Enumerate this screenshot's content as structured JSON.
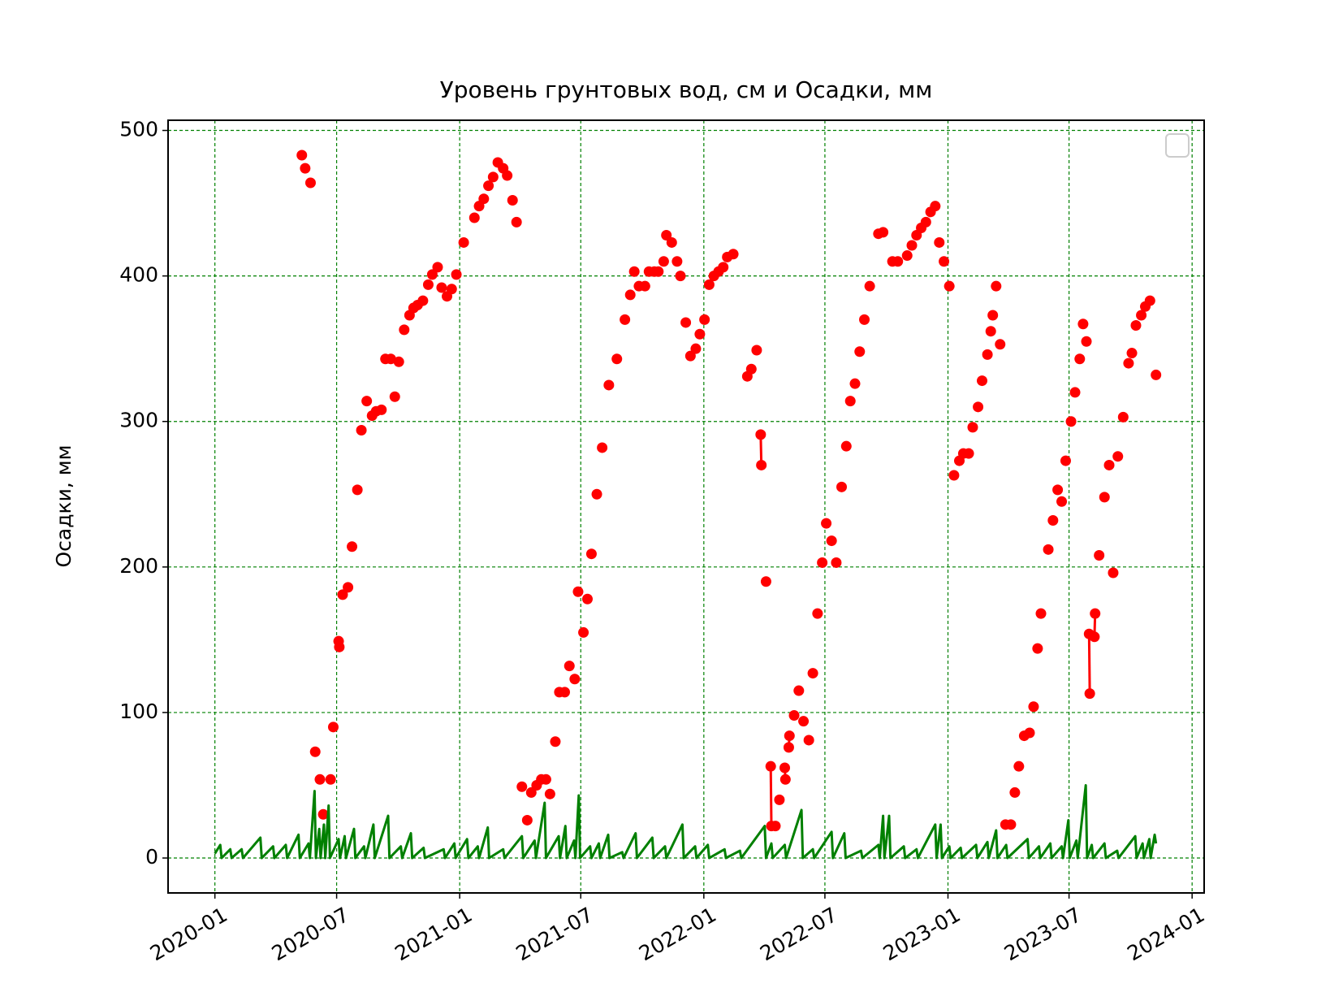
{
  "chart_data": {
    "type": "line",
    "title": "Уровень грунтовых вод, см и Осадки, мм",
    "y_label": "Осадки, мм",
    "xlim": [
      "2019-10-23",
      "2024-01-19"
    ],
    "xticks": [
      "2020-01",
      "2020-07",
      "2021-01",
      "2021-07",
      "2022-01",
      "2022-07",
      "2023-01",
      "2023-07",
      "2024-01"
    ],
    "ylim": [
      -24,
      507
    ],
    "yticks": [
      0,
      100,
      200,
      300,
      400,
      500
    ],
    "grid": true,
    "grid_color": "green",
    "legend": "upper right",
    "series": [
      {
        "color": "red",
        "marker": true,
        "x": [
          "2020-05-10",
          "2020-05-15",
          "2020-05-23",
          "2020-05-30",
          "2020-06-06",
          "2020-06-11",
          "2020-06-22",
          "2020-06-26",
          "2020-07-04",
          "2020-07-05",
          "2020-07-10",
          "2020-07-18",
          "2020-07-24",
          "2020-08-01",
          "2020-08-07",
          "2020-08-15",
          "2020-08-23",
          "2020-08-29",
          "2020-09-06",
          "2020-09-12",
          "2020-09-20",
          "2020-09-26",
          "2020-10-02",
          "2020-10-10",
          "2020-10-18",
          "2020-10-24",
          "2020-10-30",
          "2020-11-07",
          "2020-11-15",
          "2020-11-21",
          "2020-11-29",
          "2020-12-05",
          "2020-12-13",
          "2020-12-20",
          "2020-12-27",
          "2021-01-07",
          "2021-01-23",
          "2021-01-30",
          "2021-02-06",
          "2021-02-13",
          "2021-02-20",
          "2021-02-27",
          "2021-03-07",
          "2021-03-13",
          "2021-03-21",
          "2021-03-27",
          "2021-04-04",
          "2021-04-12",
          "2021-04-18",
          "2021-04-26",
          "2021-05-03",
          "2021-05-10",
          "2021-05-16",
          "2021-05-24",
          "2021-05-30",
          "2021-06-07",
          "2021-06-14",
          "2021-06-22",
          "2021-06-27",
          "2021-07-05",
          "2021-07-11",
          "2021-07-17",
          "2021-07-25",
          "2021-08-02",
          "2021-08-12",
          "2021-08-24",
          "2021-09-05",
          "2021-09-13",
          "2021-09-19",
          "2021-09-26",
          "2021-10-05",
          "2021-10-11",
          "2021-10-19",
          "2021-10-25",
          "2021-11-02",
          "2021-11-06",
          "2021-11-14",
          "2021-11-22",
          "2021-11-27",
          "2021-12-05",
          "2021-12-12",
          "2021-12-20",
          "2021-12-26",
          "2022-01-02",
          "2022-01-09",
          "2022-01-16",
          "2022-01-23",
          "2022-01-30",
          "2022-02-05",
          "2022-02-14",
          "2022-03-07",
          "2022-03-13",
          "2022-03-21",
          "2022-03-27",
          "2022-03-28",
          "2022-04-04",
          "2022-04-11",
          "2022-04-12",
          "2022-04-18",
          "2022-04-24",
          "2022-05-02",
          "2022-05-03",
          "2022-05-08",
          "2022-05-09",
          "2022-05-16",
          "2022-05-23",
          "2022-05-30",
          "2022-06-07",
          "2022-06-13",
          "2022-06-20",
          "2022-06-27",
          "2022-07-03",
          "2022-07-11",
          "2022-07-18",
          "2022-07-26",
          "2022-08-02",
          "2022-08-08",
          "2022-08-15",
          "2022-08-22",
          "2022-08-29",
          "2022-09-06",
          "2022-09-19",
          "2022-09-26",
          "2022-10-10",
          "2022-10-18",
          "2022-11-01",
          "2022-11-08",
          "2022-11-15",
          "2022-11-22",
          "2022-11-29",
          "2022-12-06",
          "2022-12-13",
          "2022-12-19",
          "2022-12-26",
          "2023-01-03",
          "2023-01-10",
          "2023-01-18",
          "2023-01-24",
          "2023-02-01",
          "2023-02-07",
          "2023-02-15",
          "2023-02-21",
          "2023-03-01",
          "2023-03-06",
          "2023-03-09",
          "2023-03-14",
          "2023-03-20",
          "2023-03-28",
          "2023-04-05",
          "2023-04-11",
          "2023-04-17",
          "2023-04-25",
          "2023-05-03",
          "2023-05-09",
          "2023-05-15",
          "2023-05-20",
          "2023-05-31",
          "2023-06-07",
          "2023-06-14",
          "2023-06-20",
          "2023-06-26",
          "2023-07-04",
          "2023-07-10",
          "2023-07-17",
          "2023-07-22",
          "2023-07-27",
          "2023-07-31",
          "2023-08-01",
          "2023-08-08",
          "2023-08-09",
          "2023-08-15",
          "2023-08-23",
          "2023-08-30",
          "2023-09-05",
          "2023-09-12",
          "2023-09-20",
          "2023-09-28",
          "2023-10-03",
          "2023-10-09",
          "2023-10-17",
          "2023-10-23",
          "2023-10-30",
          "2023-11-08"
        ],
        "values": [
          483,
          474,
          464,
          73,
          54,
          30,
          54,
          90,
          149,
          145,
          181,
          186,
          214,
          253,
          294,
          314,
          304,
          307,
          308,
          343,
          343,
          317,
          341,
          363,
          373,
          378,
          380,
          383,
          394,
          401,
          406,
          392,
          386,
          391,
          401,
          423,
          440,
          448,
          453,
          462,
          468,
          478,
          474,
          469,
          452,
          437,
          49,
          26,
          45,
          50,
          54,
          54,
          44,
          80,
          114,
          114,
          132,
          123,
          183,
          155,
          178,
          209,
          250,
          282,
          325,
          343,
          370,
          387,
          403,
          393,
          393,
          403,
          403,
          403,
          410,
          428,
          423,
          410,
          400,
          368,
          345,
          350,
          360,
          370,
          394,
          400,
          403,
          406,
          413,
          415,
          331,
          336,
          349,
          291,
          270,
          190,
          63,
          22,
          22,
          40,
          62,
          54,
          76,
          84,
          98,
          115,
          94,
          81,
          127,
          168,
          203,
          230,
          218,
          203,
          255,
          283,
          314,
          326,
          348,
          370,
          393,
          429,
          430,
          410,
          410,
          414,
          421,
          428,
          433,
          437,
          444,
          448,
          423,
          410,
          393,
          263,
          273,
          278,
          278,
          296,
          310,
          328,
          346,
          362,
          373,
          393,
          353,
          23,
          23,
          45,
          63,
          84,
          86,
          104,
          144,
          168,
          212,
          232,
          253,
          245,
          273,
          300,
          320,
          343,
          367,
          355,
          154,
          113,
          152,
          168,
          208,
          248,
          270,
          196,
          276,
          303,
          340,
          347,
          366,
          373,
          379,
          383,
          332
        ]
      },
      {
        "color": "green",
        "marker": false,
        "x": [
          "2020-01-01",
          "2020-01-09",
          "2020-01-11",
          "2020-01-24",
          "2020-01-26",
          "2020-02-10",
          "2020-02-12",
          "2020-03-09",
          "2020-03-11",
          "2020-03-28",
          "2020-03-30",
          "2020-04-16",
          "2020-04-18",
          "2020-05-05",
          "2020-05-07",
          "2020-05-20",
          "2020-05-22",
          "2020-05-29",
          "2020-05-31",
          "2020-06-05",
          "2020-06-07",
          "2020-06-12",
          "2020-06-14",
          "2020-06-19",
          "2020-06-21",
          "2020-07-04",
          "2020-07-06",
          "2020-07-13",
          "2020-07-15",
          "2020-07-27",
          "2020-07-29",
          "2020-08-11",
          "2020-08-13",
          "2020-08-25",
          "2020-08-27",
          "2020-09-16",
          "2020-09-18",
          "2020-10-05",
          "2020-10-07",
          "2020-10-20",
          "2020-10-22",
          "2020-11-08",
          "2020-11-10",
          "2020-12-08",
          "2020-12-10",
          "2020-12-24",
          "2020-12-26",
          "2021-01-12",
          "2021-01-14",
          "2021-01-28",
          "2021-01-30",
          "2021-02-12",
          "2021-02-14",
          "2021-03-07",
          "2021-03-09",
          "2021-04-04",
          "2021-04-06",
          "2021-04-23",
          "2021-04-25",
          "2021-05-08",
          "2021-05-10",
          "2021-05-29",
          "2021-05-31",
          "2021-06-08",
          "2021-06-10",
          "2021-06-21",
          "2021-06-23",
          "2021-06-28",
          "2021-06-30",
          "2021-07-15",
          "2021-07-17",
          "2021-07-28",
          "2021-07-30",
          "2021-08-11",
          "2021-08-13",
          "2021-09-01",
          "2021-09-03",
          "2021-09-21",
          "2021-09-23",
          "2021-10-16",
          "2021-10-18",
          "2021-11-04",
          "2021-11-06",
          "2021-11-30",
          "2021-12-02",
          "2021-12-19",
          "2021-12-21",
          "2022-01-07",
          "2022-01-09",
          "2022-02-01",
          "2022-02-03",
          "2022-02-24",
          "2022-02-26",
          "2022-04-02",
          "2022-04-04",
          "2022-04-12",
          "2022-04-14",
          "2022-05-02",
          "2022-05-04",
          "2022-05-27",
          "2022-05-29",
          "2022-06-13",
          "2022-06-15",
          "2022-07-11",
          "2022-07-13",
          "2022-07-30",
          "2022-08-01",
          "2022-08-24",
          "2022-08-26",
          "2022-09-19",
          "2022-09-21",
          "2022-09-26",
          "2022-09-28",
          "2022-10-05",
          "2022-10-07",
          "2022-10-27",
          "2022-10-29",
          "2022-11-15",
          "2022-11-17",
          "2022-12-13",
          "2022-12-15",
          "2022-12-21",
          "2022-12-23",
          "2023-01-03",
          "2023-01-05",
          "2023-01-20",
          "2023-01-22",
          "2023-02-12",
          "2023-02-14",
          "2023-03-01",
          "2023-03-03",
          "2023-03-14",
          "2023-03-16",
          "2023-03-29",
          "2023-03-31",
          "2023-04-30",
          "2023-05-02",
          "2023-05-17",
          "2023-05-19",
          "2023-06-03",
          "2023-06-05",
          "2023-06-20",
          "2023-06-22",
          "2023-06-30",
          "2023-07-02",
          "2023-07-12",
          "2023-07-14",
          "2023-07-26",
          "2023-07-28",
          "2023-08-04",
          "2023-08-06",
          "2023-08-23",
          "2023-08-25",
          "2023-09-11",
          "2023-09-13",
          "2023-10-08",
          "2023-10-10",
          "2023-10-19",
          "2023-10-21",
          "2023-10-29",
          "2023-10-31",
          "2023-11-06",
          "2023-11-08"
        ],
        "values": [
          3,
          9,
          0,
          6,
          0,
          6,
          0,
          14,
          0,
          8,
          0,
          9,
          0,
          16,
          0,
          10,
          0,
          46,
          0,
          20,
          0,
          23,
          0,
          36,
          0,
          13,
          0,
          15,
          0,
          20,
          0,
          8,
          0,
          23,
          0,
          29,
          0,
          8,
          0,
          17,
          0,
          7,
          0,
          6,
          0,
          10,
          0,
          13,
          0,
          8,
          0,
          21,
          0,
          6,
          0,
          15,
          0,
          12,
          0,
          38,
          0,
          15,
          0,
          22,
          0,
          12,
          0,
          43,
          0,
          8,
          0,
          10,
          0,
          16,
          0,
          4,
          0,
          17,
          0,
          14,
          0,
          8,
          0,
          23,
          0,
          8,
          0,
          9,
          0,
          6,
          0,
          5,
          0,
          22,
          0,
          10,
          0,
          9,
          0,
          33,
          0,
          6,
          0,
          18,
          0,
          17,
          0,
          5,
          0,
          9,
          0,
          29,
          0,
          29,
          0,
          8,
          0,
          6,
          0,
          23,
          0,
          23,
          0,
          8,
          0,
          7,
          0,
          9,
          0,
          11,
          0,
          19,
          0,
          9,
          0,
          13,
          0,
          8,
          0,
          10,
          0,
          8,
          0,
          26,
          0,
          12,
          0,
          50,
          0,
          9,
          0,
          10,
          0,
          5,
          0,
          15,
          0,
          10,
          0,
          13,
          0,
          16,
          10
        ]
      }
    ]
  }
}
